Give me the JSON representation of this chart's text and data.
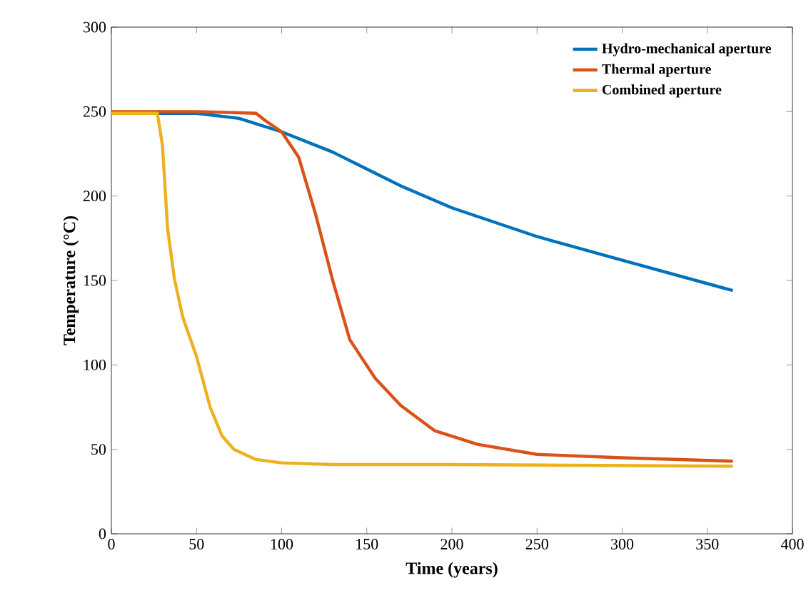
{
  "chart_data": {
    "type": "line",
    "xlabel": "Time (years)",
    "ylabel": "Temperature (°C)",
    "xlim": [
      0,
      400
    ],
    "ylim": [
      0,
      300
    ],
    "xticks": [
      0,
      50,
      100,
      150,
      200,
      250,
      300,
      350,
      400
    ],
    "yticks": [
      0,
      50,
      100,
      150,
      200,
      250,
      300
    ],
    "legend": "top right",
    "grid": false,
    "marker": "none",
    "line_style": "solid",
    "series": [
      {
        "name": "Hydro-mechanical aperture",
        "color": "#0072bd",
        "x": [
          0,
          25,
          50,
          75,
          100,
          130,
          170,
          200,
          250,
          300,
          365
        ],
        "values": [
          249,
          249,
          249,
          246,
          238,
          226,
          206,
          193,
          176,
          162,
          144
        ]
      },
      {
        "name": "Thermal aperture",
        "color": "#d95319",
        "x": [
          0,
          50,
          85,
          90,
          100,
          110,
          120,
          130,
          140,
          155,
          170,
          190,
          215,
          250,
          300,
          365
        ],
        "values": [
          250,
          250,
          249,
          245,
          238,
          223,
          189,
          150,
          115,
          92,
          76,
          61,
          53,
          47,
          45,
          43
        ]
      },
      {
        "name": "Combined aperture",
        "color": "#edb120",
        "x": [
          0,
          27,
          30,
          33,
          37,
          42,
          50,
          58,
          65,
          72,
          85,
          100,
          130,
          200,
          365
        ],
        "values": [
          249,
          249,
          230,
          181,
          151,
          128,
          105,
          75,
          58,
          50,
          44,
          42,
          41,
          41,
          40
        ]
      }
    ]
  }
}
